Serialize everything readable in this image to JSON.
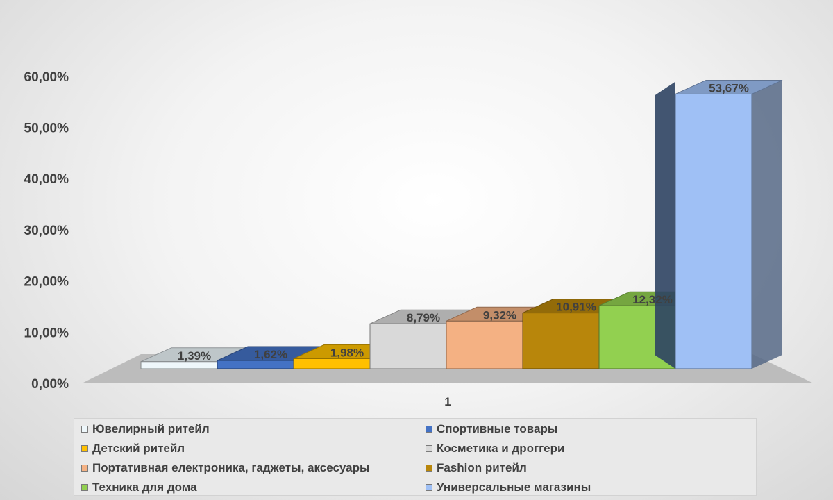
{
  "chart_data": {
    "type": "bar",
    "style": "3d-column",
    "categories": [
      "1"
    ],
    "series": [
      {
        "name": "Ювелирный ритейл",
        "values": [
          1.39
        ],
        "label": "1,39%",
        "color": "#eef7fb"
      },
      {
        "name": "Спортивные товары",
        "values": [
          1.62
        ],
        "label": "1,62%",
        "color": "#4472c4"
      },
      {
        "name": "Детский ритейл",
        "values": [
          1.98
        ],
        "label": "1,98%",
        "color": "#ffc000"
      },
      {
        "name": "Косметика и дроггери",
        "values": [
          8.79
        ],
        "label": "8,79%",
        "color": "#d9d9d9"
      },
      {
        "name": "Портативная електроника, гаджеты, аксесуары",
        "values": [
          9.32
        ],
        "label": "9,32%",
        "color": "#f4b183"
      },
      {
        "name": "Fashion ритейл",
        "values": [
          10.91
        ],
        "label": "10,91%",
        "color": "#b8860b"
      },
      {
        "name": "Техника для дома",
        "values": [
          12.32
        ],
        "label": "12,32%",
        "color": "#92d050"
      },
      {
        "name": "Универсальные магазины",
        "values": [
          53.67
        ],
        "label": "53,67%",
        "color": "#9fc0f5"
      }
    ],
    "yticks": [
      "0,00%",
      "10,00%",
      "20,00%",
      "30,00%",
      "40,00%",
      "50,00%",
      "60,00%"
    ],
    "ylim": [
      0,
      60
    ],
    "unit": "%",
    "grid": false,
    "legend_position": "bottom",
    "title": "",
    "xlabel": "",
    "ylabel": ""
  }
}
